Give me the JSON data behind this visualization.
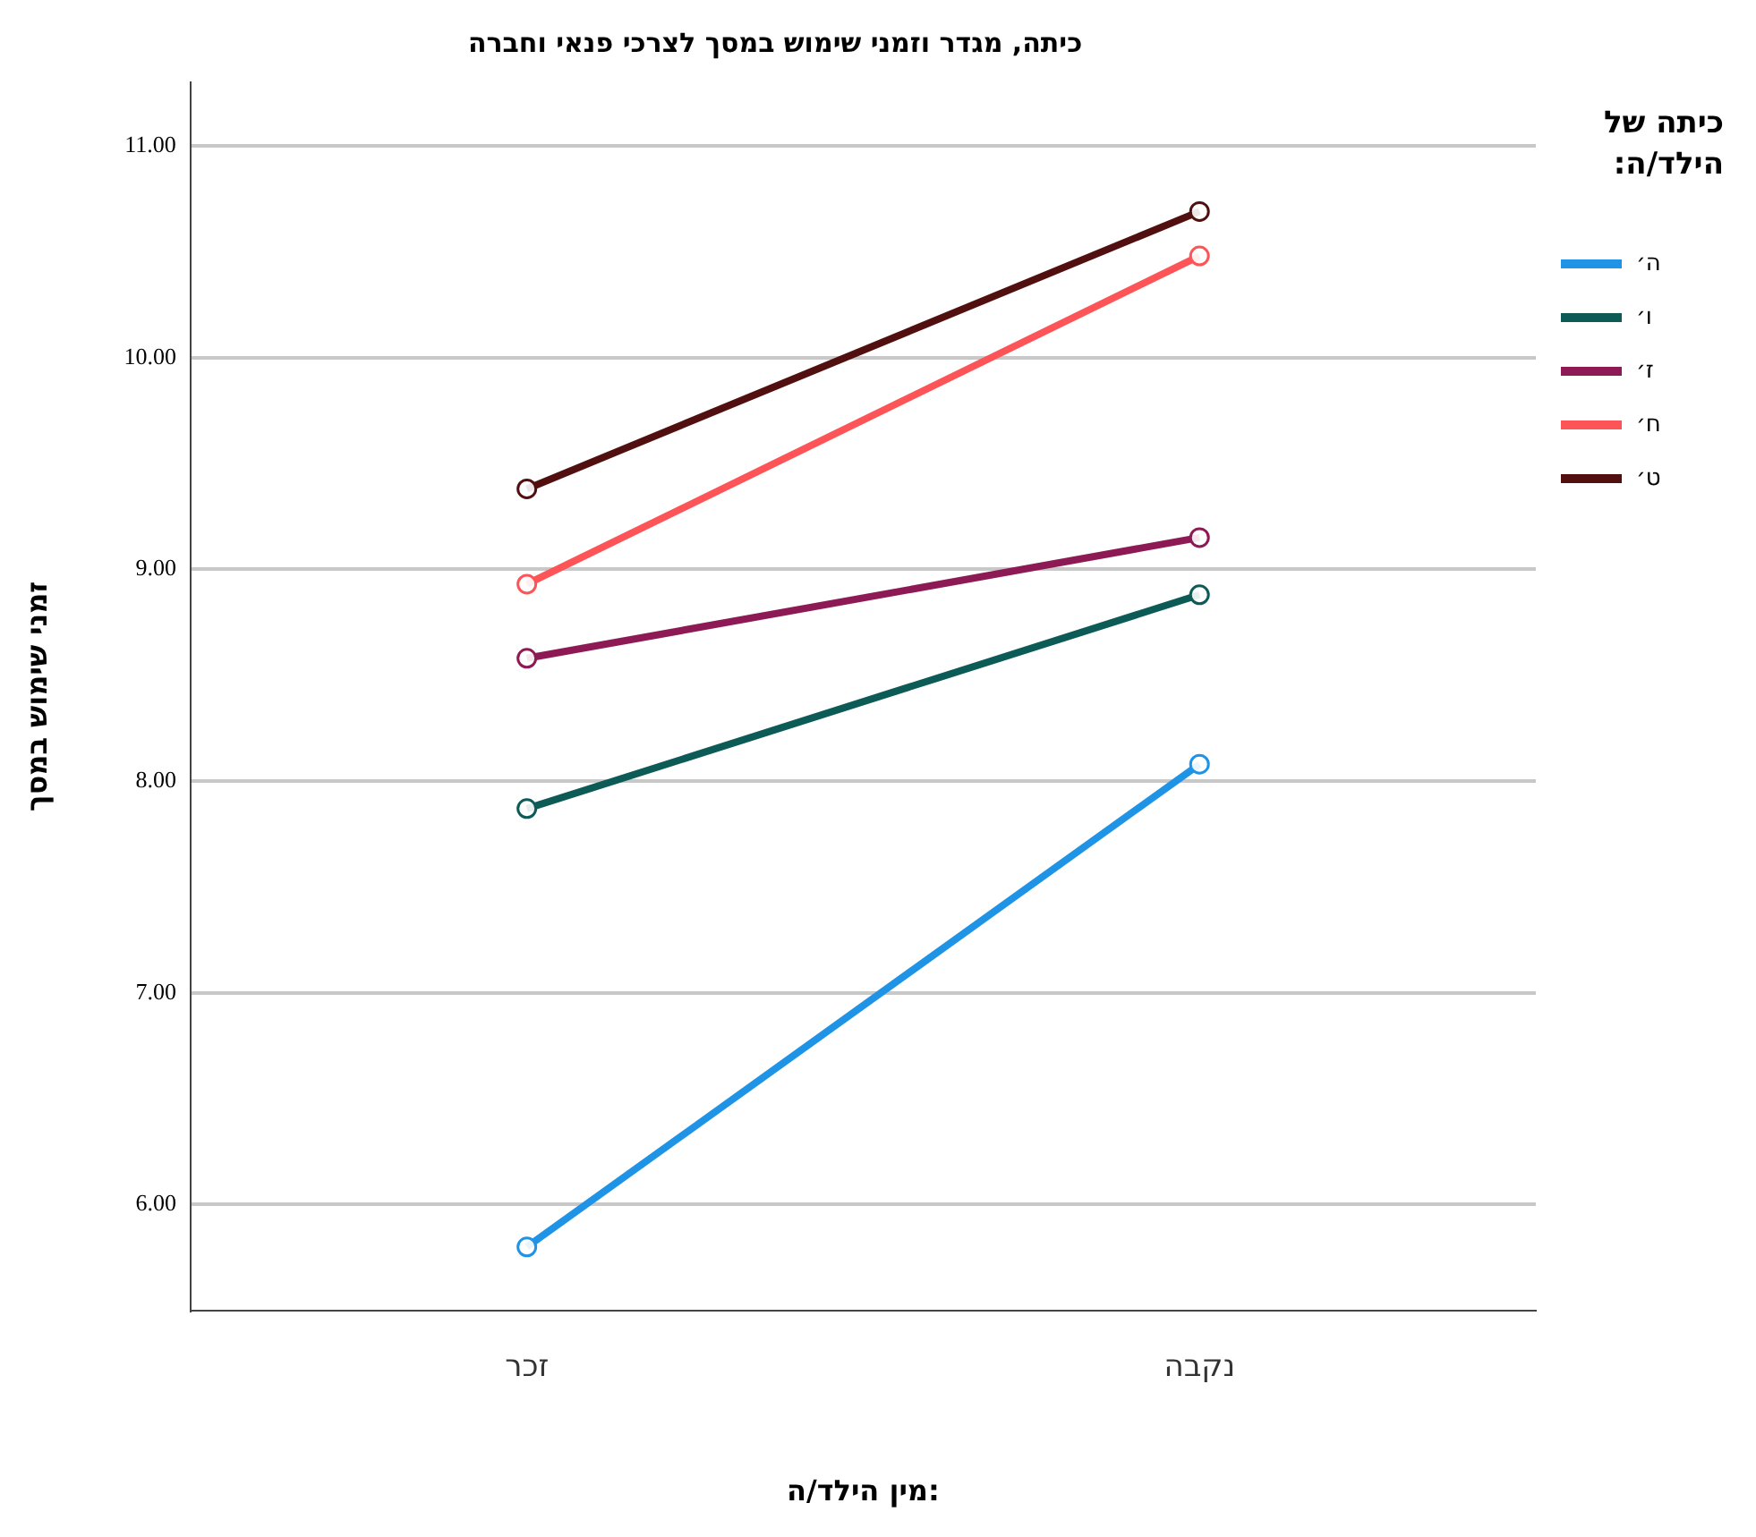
{
  "chart_data": {
    "type": "line",
    "title": "כיתה, מגדר וזמני שימוש במסך לצרכי פנאי וחברה",
    "xlabel": "מין הילד/ה:",
    "ylabel": "זמני שימוש במסך",
    "legend_title": "כיתה של הילד/ה:",
    "categories": [
      "זכר",
      "נקבה"
    ],
    "series": [
      {
        "name": "ה׳",
        "color": "#1f94e6",
        "values": [
          5.8,
          8.08
        ]
      },
      {
        "name": "ו׳",
        "color": "#0c5b57",
        "values": [
          7.87,
          8.88
        ]
      },
      {
        "name": "ז׳",
        "color": "#8e1a55",
        "values": [
          8.58,
          9.15
        ]
      },
      {
        "name": "ח׳",
        "color": "#fd5458",
        "values": [
          8.93,
          10.48
        ]
      },
      {
        "name": "ט׳",
        "color": "#510f0f",
        "values": [
          9.38,
          10.69
        ]
      }
    ],
    "ylim": [
      5.5,
      11.3
    ],
    "yticks": [
      {
        "value": 6,
        "label": "6.00"
      },
      {
        "value": 7,
        "label": "7.00"
      },
      {
        "value": 8,
        "label": "8.00"
      },
      {
        "value": 9,
        "label": "9.00"
      },
      {
        "value": 10,
        "label": "10.00"
      },
      {
        "value": 11,
        "label": "11.00"
      }
    ],
    "grid": "y",
    "legend": "right",
    "marker": "circle",
    "line_style": "solid"
  }
}
